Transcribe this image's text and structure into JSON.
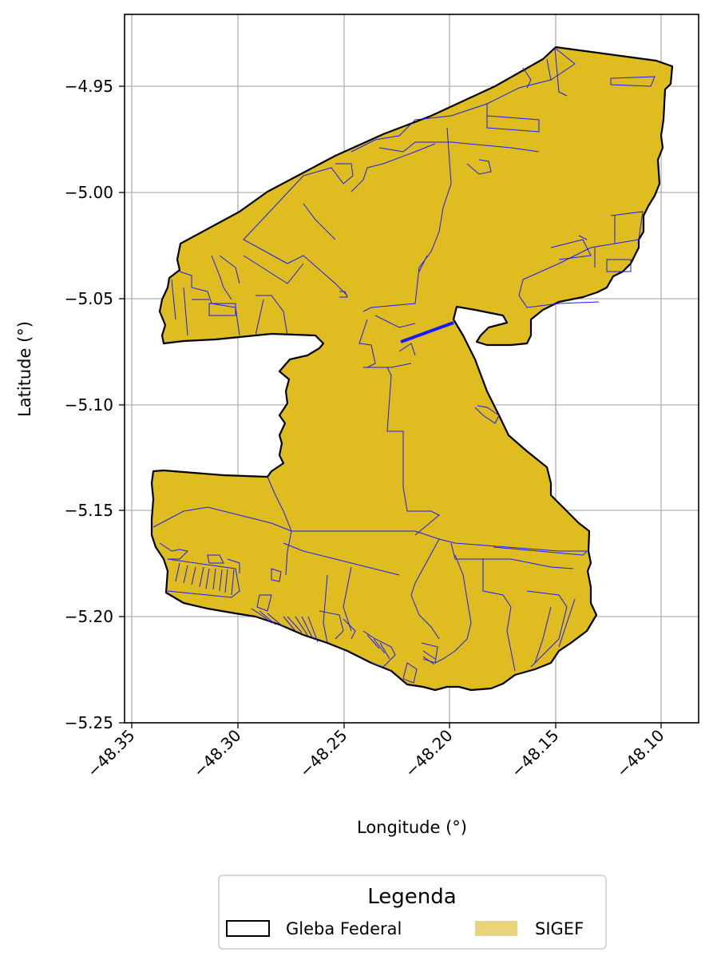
{
  "chart_data": {
    "type": "map",
    "xlabel": "Longitude (°)",
    "ylabel": "Latitude (°)",
    "xlim": [
      -48.362,
      -48.08
    ],
    "ylim": [
      -5.25,
      -4.916
    ],
    "x_ticks": [
      "−48.35",
      "−48.30",
      "−48.25",
      "−48.20",
      "−48.15",
      "−48.10"
    ],
    "y_ticks": [
      "−4.95",
      "−5.00",
      "−5.05",
      "−5.10",
      "−5.15",
      "−5.20",
      "−5.25"
    ],
    "grid": true,
    "legend": {
      "title": "Legenda",
      "placement": "bottom-center",
      "entries": [
        {
          "label": "Gleba Federal",
          "style": "outline"
        },
        {
          "label": "SIGEF",
          "style": "fill"
        }
      ]
    },
    "colors": {
      "fill": "#dfbc1f",
      "legend_fill": "#e8d47a",
      "outline": "#000000",
      "parcel_lines": "#1a1aff",
      "grid": "#b0b0b0"
    }
  }
}
